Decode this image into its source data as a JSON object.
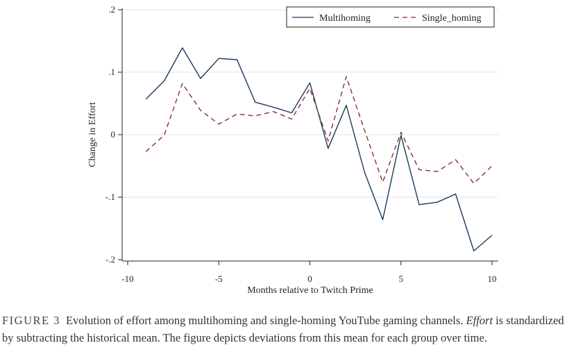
{
  "chart_data": {
    "type": "line",
    "xlabel": "Months relative to Twitch Prime",
    "ylabel": "Change in Effort",
    "xlim": [
      -10,
      10
    ],
    "ylim": [
      -0.2,
      0.2
    ],
    "xticks": [
      -10,
      -5,
      0,
      5,
      10
    ],
    "xtick_labels": [
      "-10",
      "-5",
      "0",
      "5",
      "10"
    ],
    "yticks": [
      -0.2,
      -0.1,
      0,
      0.1,
      0.2
    ],
    "ytick_labels": [
      "-.2",
      "-.1",
      "0",
      ".1",
      ".2"
    ],
    "grid": true,
    "legend_position": "top-right",
    "x": [
      -9,
      -8,
      -7,
      -6,
      -5,
      -4,
      -3,
      -2,
      -1,
      0,
      1,
      2,
      3,
      4,
      5,
      6,
      7,
      8,
      9,
      10
    ],
    "series": [
      {
        "name": "Multihoming",
        "color": "#1a3a5c",
        "style": "solid",
        "values": [
          0.057,
          0.086,
          0.139,
          0.09,
          0.122,
          0.12,
          0.052,
          0.044,
          0.035,
          0.083,
          -0.022,
          0.047,
          -0.06,
          -0.136,
          -0.001,
          -0.112,
          -0.108,
          -0.095,
          -0.186,
          -0.161
        ]
      },
      {
        "name": "Single_homing",
        "color": "#8b2a3a",
        "style": "dashed",
        "values": [
          -0.027,
          -0.001,
          0.082,
          0.039,
          0.017,
          0.033,
          0.03,
          0.037,
          0.025,
          0.074,
          -0.01,
          0.093,
          0.007,
          -0.076,
          0.004,
          -0.056,
          -0.059,
          -0.04,
          -0.078,
          -0.05
        ]
      }
    ]
  },
  "caption": {
    "label": "FIGURE 3",
    "text_before": "Evolution of effort among multihoming and single-homing YouTube gaming channels. ",
    "emphasis": "Effort",
    "text_after": " is standardized by subtracting the historical mean. The figure depicts deviations from this mean for each group over time."
  }
}
